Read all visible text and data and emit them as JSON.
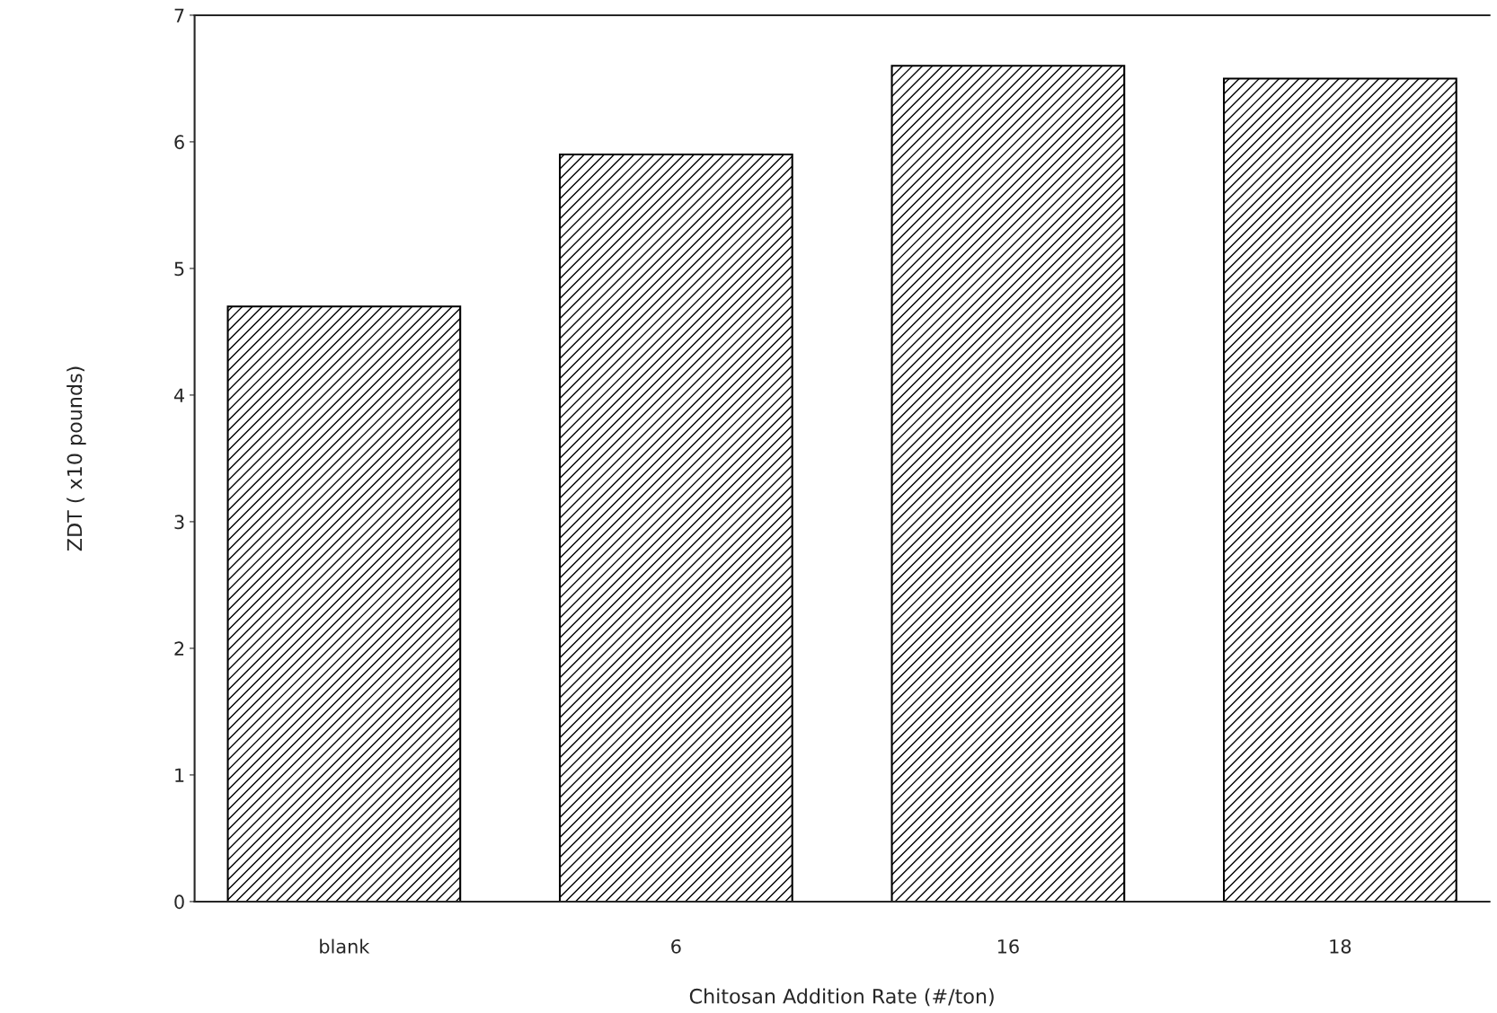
{
  "chart_data": {
    "type": "bar",
    "xlabel": "Chitosan Addition Rate (#/ton)",
    "ylabel": "ZDT ( x10 pounds)",
    "categories": [
      "blank",
      "6",
      "16",
      "18"
    ],
    "values": [
      4.7,
      5.9,
      6.6,
      6.5
    ],
    "color": "#000000",
    "ylim": [
      0,
      7
    ],
    "yticks": [
      0,
      1,
      2,
      3,
      4,
      5,
      6,
      7
    ],
    "grid": false,
    "legend": false
  }
}
